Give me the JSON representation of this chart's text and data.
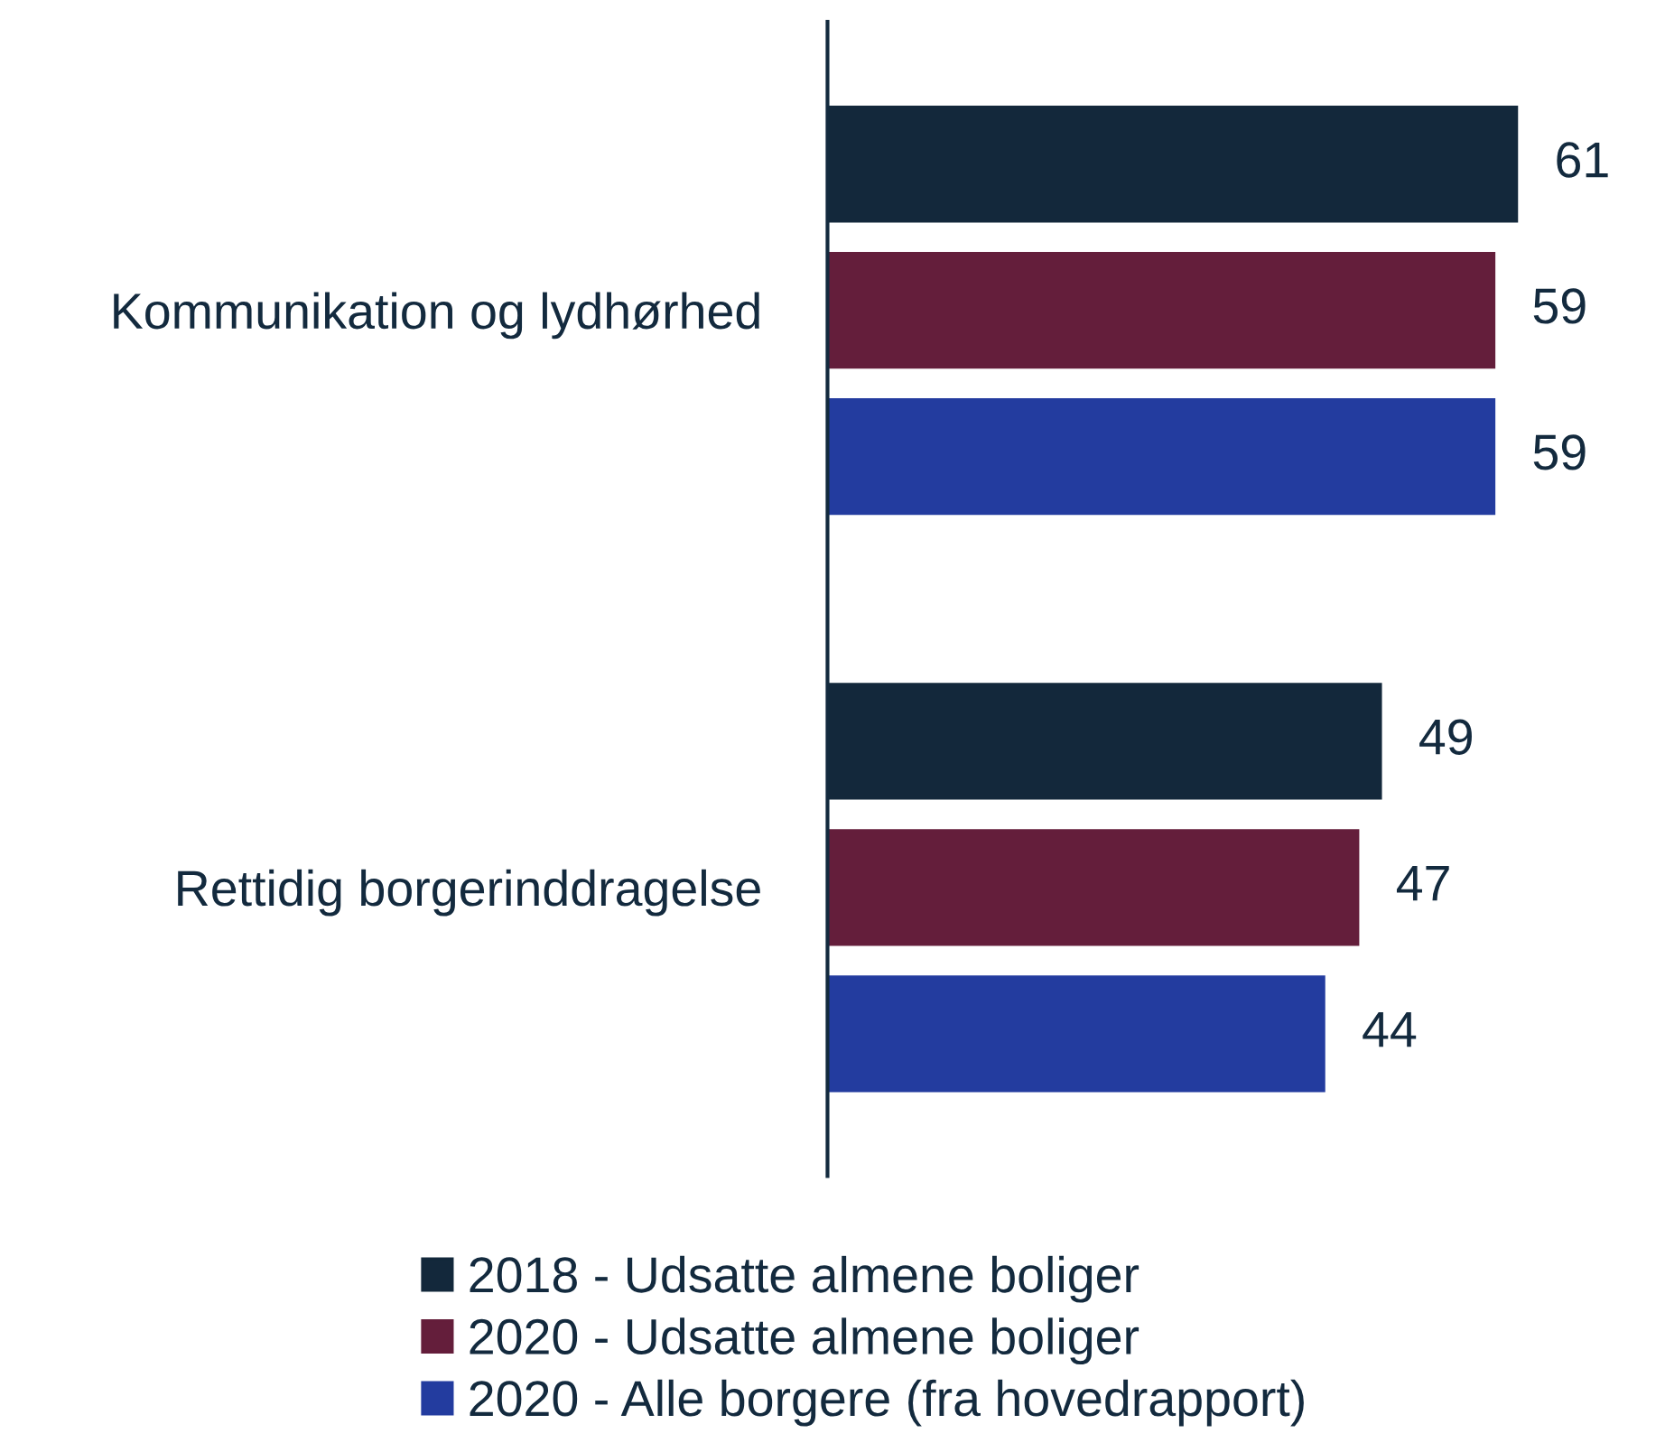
{
  "chart_data": {
    "type": "bar",
    "orientation": "horizontal",
    "categories": [
      "Kommunikation og lydhørhed",
      "Rettidig borgerinddragelse"
    ],
    "series": [
      {
        "name": "2018 - Udsatte almene boliger",
        "color": "#13283b",
        "values": [
          61,
          49
        ]
      },
      {
        "name": "2020 - Udsatte almene boliger",
        "color": "#641e3b",
        "values": [
          59,
          47
        ]
      },
      {
        "name": "2020 - Alle borgere (fra hovedrapport)",
        "color": "#233c9f",
        "values": [
          59,
          44
        ]
      }
    ],
    "data_labels": true,
    "grid": false,
    "legend": "bottom"
  }
}
